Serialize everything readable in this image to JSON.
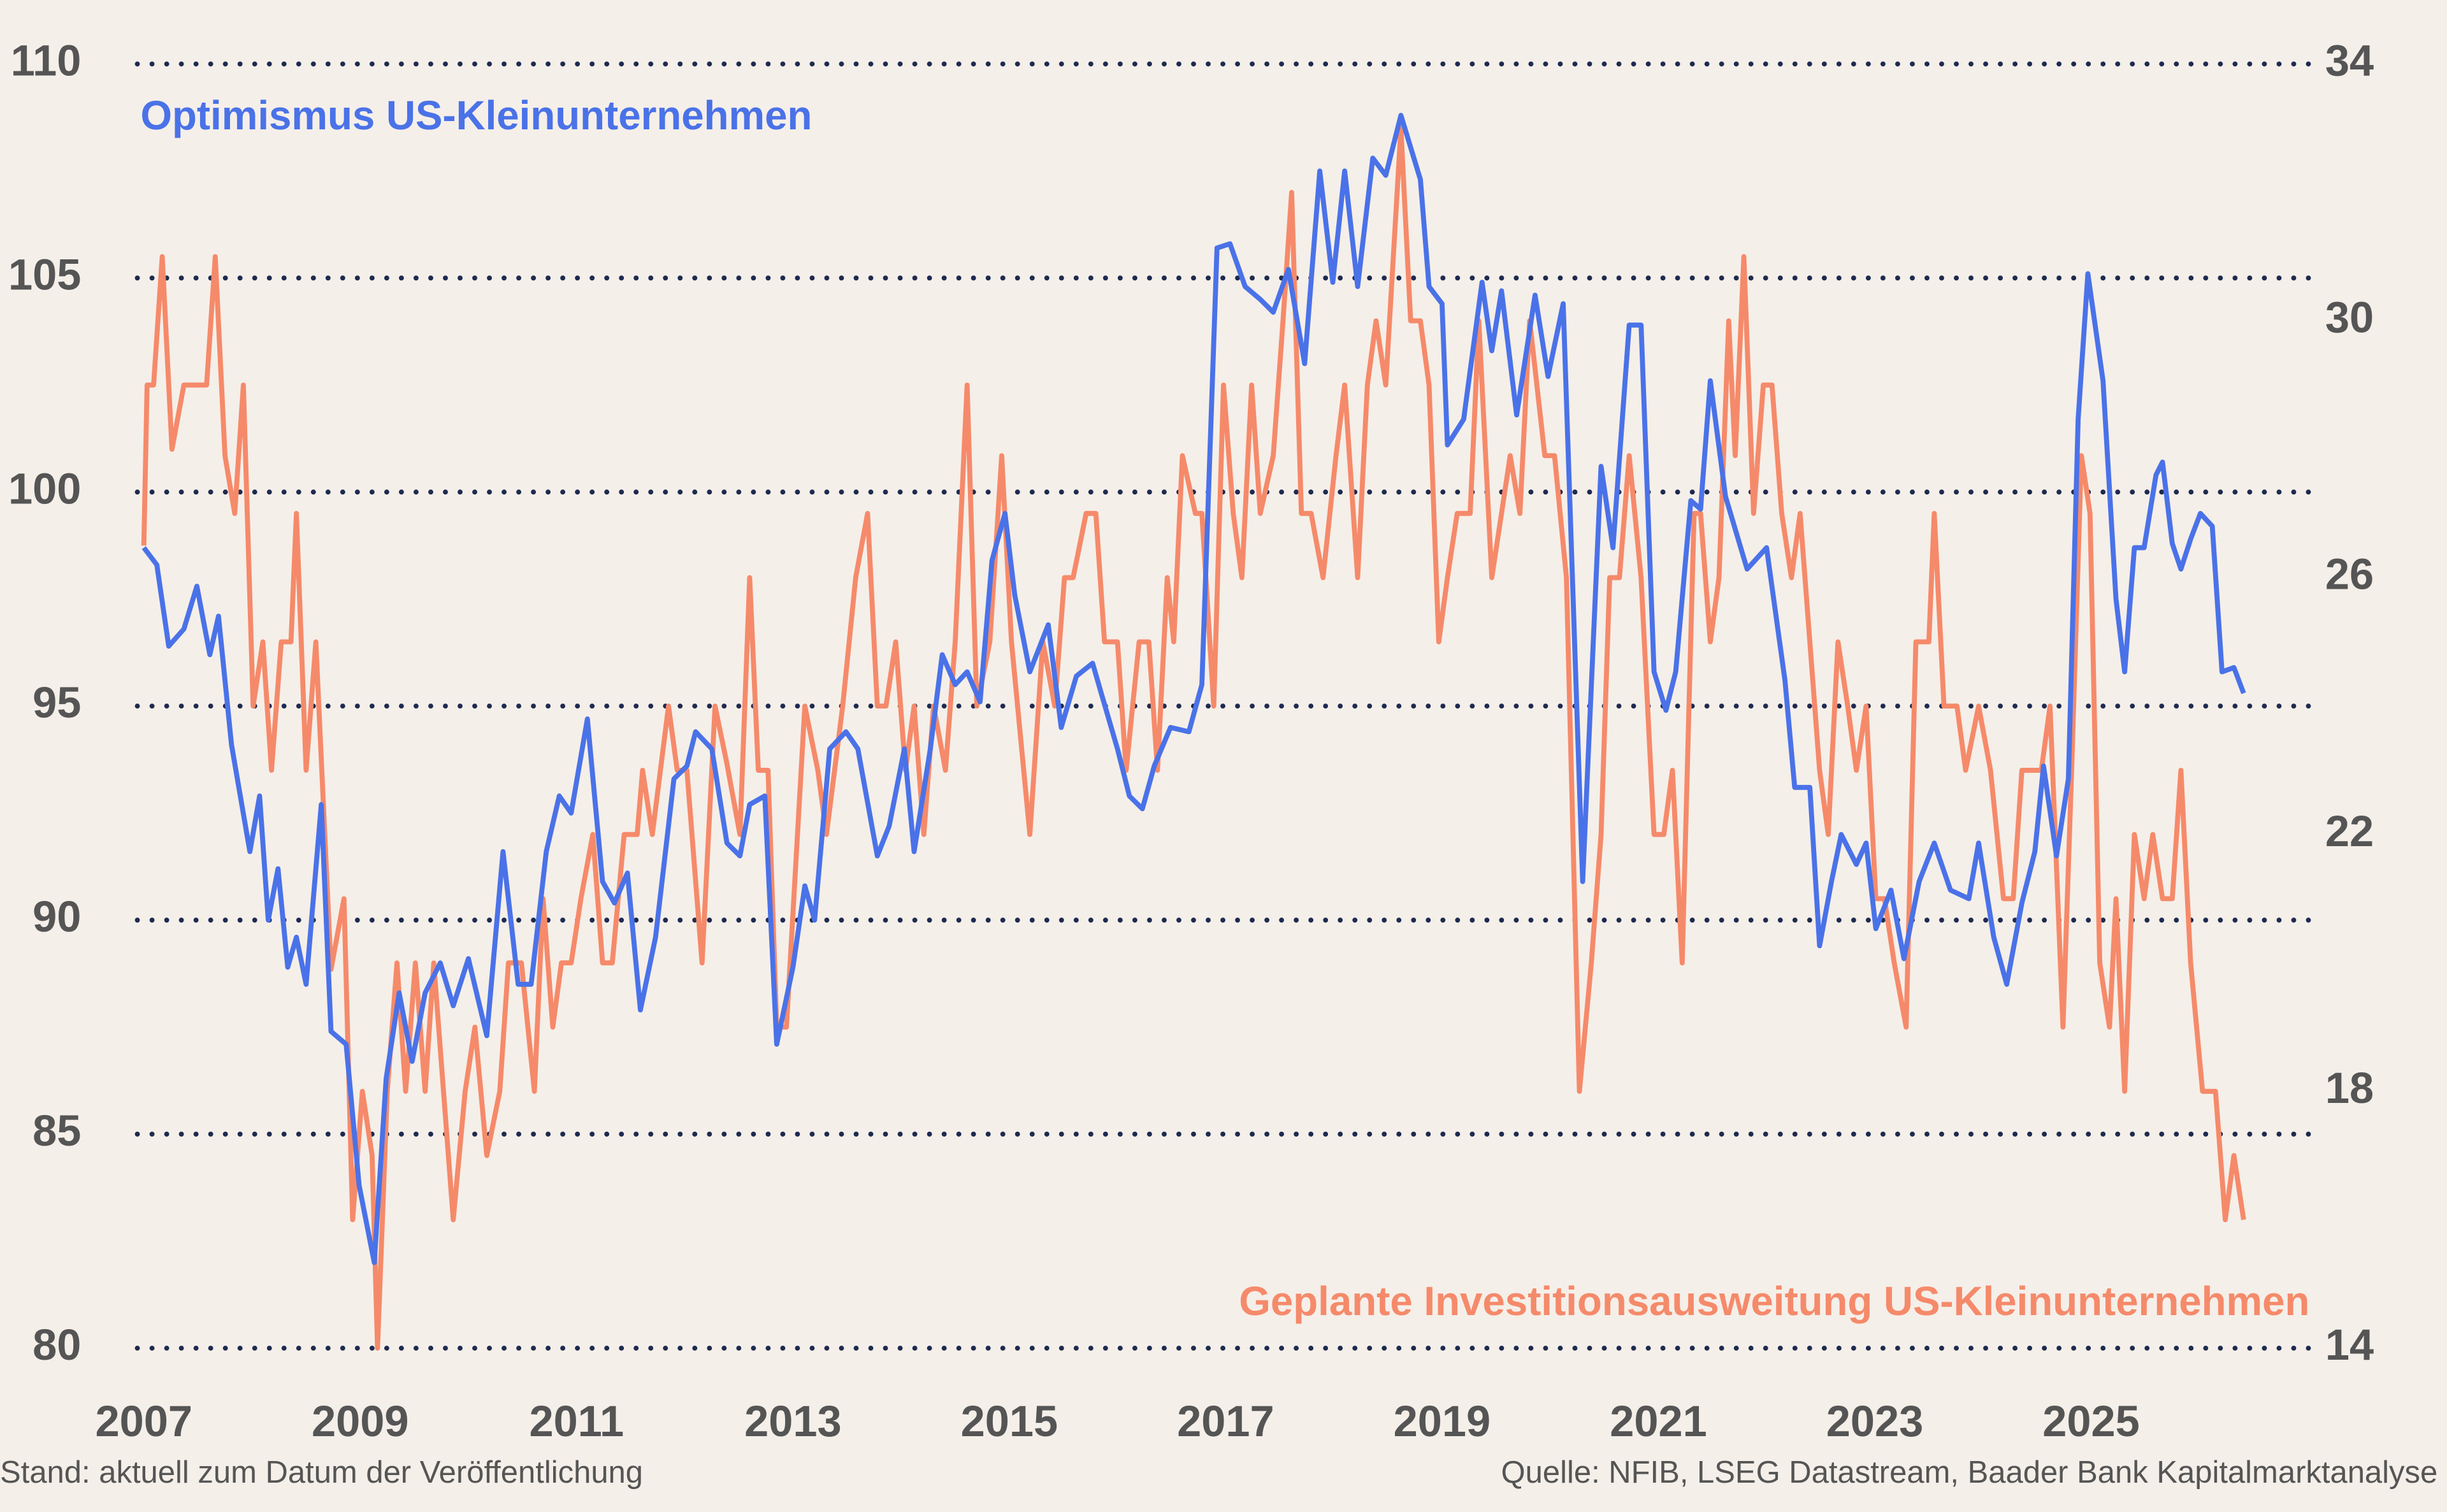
{
  "chart_data": {
    "type": "line",
    "note": "Stand: aktuell zum Datum der Veröffentlichung",
    "source": "Quelle: NFIB, LSEG Datastream, Baader Bank Kapitalmarktanalyse",
    "xlim": [
      2006.94,
      2027.02
    ],
    "xticks": [
      2007,
      2009,
      2011,
      2013,
      2015,
      2017,
      2019,
      2021,
      2023,
      2025
    ],
    "ylim": [
      80,
      110
    ],
    "yticks": [
      80,
      85,
      90,
      95,
      100,
      105,
      110
    ],
    "y2lim": [
      14,
      34
    ],
    "y2ticks": [
      14,
      18,
      22,
      26,
      30,
      34
    ],
    "grid": true,
    "series": [
      {
        "name": "Optimismus US-Kleinunternehmen",
        "color": "#4a72e8",
        "x": [
          2007.0,
          2007.12,
          2007.23,
          2007.37,
          2007.49,
          2007.61,
          2007.69,
          2007.81,
          2007.98,
          2008.07,
          2008.15,
          2008.24,
          2008.33,
          2008.41,
          2008.5,
          2008.64,
          2008.73,
          2008.87,
          2008.99,
          2009.13,
          2009.24,
          2009.36,
          2009.48,
          2009.6,
          2009.74,
          2009.86,
          2010.0,
          2010.17,
          2010.32,
          2010.46,
          2010.58,
          2010.72,
          2010.84,
          2010.95,
          2011.1,
          2011.24,
          2011.35,
          2011.47,
          2011.59,
          2011.73,
          2011.9,
          2012.02,
          2012.1,
          2012.25,
          2012.39,
          2012.51,
          2012.6,
          2012.74,
          2012.85,
          2013.0,
          2013.11,
          2013.2,
          2013.34,
          2013.49,
          2013.6,
          2013.78,
          2013.89,
          2014.03,
          2014.12,
          2014.27,
          2014.38,
          2014.5,
          2014.61,
          2014.73,
          2014.84,
          2014.96,
          2015.05,
          2015.19,
          2015.36,
          2015.48,
          2015.62,
          2015.77,
          2015.85,
          2016.0,
          2016.11,
          2016.23,
          2016.34,
          2016.49,
          2016.66,
          2016.78,
          2016.92,
          2017.04,
          2017.18,
          2017.32,
          2017.44,
          2017.58,
          2017.73,
          2017.87,
          2017.99,
          2018.1,
          2018.22,
          2018.36,
          2018.48,
          2018.62,
          2018.8,
          2018.88,
          2019.0,
          2019.05,
          2019.2,
          2019.37,
          2019.46,
          2019.55,
          2019.69,
          2019.86,
          2019.98,
          2020.12,
          2020.3,
          2020.47,
          2020.58,
          2020.73,
          2020.84,
          2020.96,
          2021.07,
          2021.16,
          2021.3,
          2021.39,
          2021.48,
          2021.62,
          2021.82,
          2022.0,
          2022.17,
          2022.26,
          2022.4,
          2022.49,
          2022.6,
          2022.69,
          2022.83,
          2022.92,
          2023.01,
          2023.15,
          2023.27,
          2023.41,
          2023.55,
          2023.7,
          2023.87,
          2023.96,
          2024.1,
          2024.22,
          2024.36,
          2024.48,
          2024.56,
          2024.68,
          2024.79,
          2024.88,
          2024.97,
          2025.11,
          2025.23,
          2025.31,
          2025.4,
          2025.49,
          2025.6,
          2025.66,
          2025.75,
          2025.83,
          2025.92,
          2026.01,
          2026.12,
          2026.21,
          2026.32,
          2026.41
        ],
        "values": [
          98.7,
          98.3,
          96.4,
          96.8,
          97.8,
          96.2,
          97.1,
          94.1,
          91.6,
          92.9,
          90.0,
          91.2,
          88.9,
          89.6,
          88.5,
          92.7,
          87.4,
          87.1,
          83.8,
          82.0,
          86.3,
          88.3,
          86.7,
          88.3,
          89.0,
          88.0,
          89.1,
          87.3,
          91.6,
          88.5,
          88.5,
          91.6,
          92.9,
          92.5,
          94.7,
          90.9,
          90.4,
          91.1,
          87.9,
          89.6,
          93.3,
          93.6,
          94.4,
          94.0,
          91.8,
          91.5,
          92.7,
          92.9,
          87.1,
          88.9,
          90.8,
          90.0,
          94.0,
          94.4,
          94.0,
          91.5,
          92.2,
          94.0,
          91.6,
          94.0,
          96.2,
          95.5,
          95.8,
          95.1,
          98.4,
          99.5,
          97.6,
          95.8,
          96.9,
          94.5,
          95.7,
          96.0,
          95.3,
          94.0,
          92.9,
          92.6,
          93.6,
          94.5,
          94.4,
          95.5,
          105.7,
          105.8,
          104.8,
          104.5,
          104.2,
          105.2,
          103.0,
          107.5,
          104.9,
          107.5,
          104.8,
          107.8,
          107.4,
          108.8,
          107.3,
          104.8,
          104.4,
          101.1,
          101.7,
          104.9,
          103.3,
          104.7,
          101.8,
          104.6,
          102.7,
          104.4,
          90.9,
          100.6,
          98.7,
          103.9,
          103.9,
          95.8,
          94.9,
          95.8,
          99.8,
          99.6,
          102.6,
          99.9,
          98.2,
          98.7,
          95.6,
          93.1,
          93.1,
          89.4,
          90.9,
          92.0,
          91.3,
          91.8,
          89.8,
          90.7,
          89.1,
          90.9,
          91.8,
          90.7,
          90.5,
          91.8,
          89.6,
          88.5,
          90.4,
          91.6,
          93.6,
          91.5,
          93.3,
          101.7,
          105.1,
          102.6,
          97.5,
          95.8,
          98.7,
          98.7,
          100.4,
          100.7,
          98.8,
          98.2,
          98.9,
          99.5,
          99.2,
          95.8,
          95.9,
          95.3
        ]
      },
      {
        "name": "Geplante Investitionsausweitung US-Kleinunternehmen",
        "color": "#f58a6a",
        "axis": "y2",
        "x": [
          2007.0,
          2007.03,
          2007.09,
          2007.17,
          2007.26,
          2007.37,
          2007.58,
          2007.66,
          2007.75,
          2007.84,
          2007.92,
          2008.01,
          2008.1,
          2008.18,
          2008.27,
          2008.36,
          2008.41,
          2008.5,
          2008.59,
          2008.73,
          2008.85,
          2008.93,
          2009.02,
          2009.11,
          2009.16,
          2009.25,
          2009.34,
          2009.42,
          2009.51,
          2009.6,
          2009.68,
          2009.86,
          2009.97,
          2010.06,
          2010.17,
          2010.29,
          2010.37,
          2010.49,
          2010.61,
          2010.69,
          2010.78,
          2010.86,
          2010.95,
          2011.04,
          2011.15,
          2011.24,
          2011.33,
          2011.44,
          2011.56,
          2011.61,
          2011.7,
          2011.85,
          2011.93,
          2012.02,
          2012.16,
          2012.28,
          2012.39,
          2012.51,
          2012.6,
          2012.68,
          2012.77,
          2012.85,
          2012.94,
          2013.11,
          2013.23,
          2013.31,
          2013.46,
          2013.58,
          2013.69,
          2013.78,
          2013.86,
          2013.95,
          2014.04,
          2014.12,
          2014.21,
          2014.3,
          2014.41,
          2014.5,
          2014.61,
          2014.7,
          2014.82,
          2014.93,
          2015.02,
          2015.19,
          2015.31,
          2015.42,
          2015.51,
          2015.59,
          2015.71,
          2015.8,
          2015.88,
          2016.0,
          2016.08,
          2016.2,
          2016.29,
          2016.37,
          2016.46,
          2016.52,
          2016.6,
          2016.72,
          2016.78,
          2016.89,
          2016.98,
          2017.07,
          2017.15,
          2017.24,
          2017.32,
          2017.44,
          2017.53,
          2017.61,
          2017.7,
          2017.79,
          2017.9,
          2018.02,
          2018.1,
          2018.22,
          2018.31,
          2018.39,
          2018.48,
          2018.62,
          2018.71,
          2018.8,
          2018.88,
          2018.97,
          2019.05,
          2019.14,
          2019.26,
          2019.34,
          2019.46,
          2019.55,
          2019.63,
          2019.72,
          2019.81,
          2019.95,
          2020.04,
          2020.15,
          2020.27,
          2020.38,
          2020.47,
          2020.55,
          2020.64,
          2020.73,
          2020.84,
          2020.96,
          2021.05,
          2021.13,
          2021.22,
          2021.33,
          2021.39,
          2021.48,
          2021.56,
          2021.65,
          2021.71,
          2021.79,
          2021.88,
          2021.97,
          2022.05,
          2022.14,
          2022.23,
          2022.31,
          2022.4,
          2022.49,
          2022.57,
          2022.66,
          2022.75,
          2022.83,
          2022.92,
          2023.01,
          2023.09,
          2023.18,
          2023.29,
          2023.38,
          2023.5,
          2023.55,
          2023.64,
          2023.76,
          2023.84,
          2023.96,
          2024.07,
          2024.19,
          2024.28,
          2024.36,
          2024.48,
          2024.54,
          2024.62,
          2024.74,
          2024.82,
          2024.91,
          2024.99,
          2025.08,
          2025.17,
          2025.23,
          2025.31,
          2025.4,
          2025.49,
          2025.57,
          2025.66,
          2025.75,
          2025.83,
          2025.92,
          2026.03,
          2026.15,
          2026.24,
          2026.32,
          2026.41
        ],
        "values": [
          26.5,
          29,
          29,
          31,
          28,
          29,
          29,
          31,
          27.9,
          27,
          29,
          24,
          25,
          23,
          25,
          25,
          27,
          23,
          25,
          19.9,
          21,
          16,
          18,
          17,
          14,
          18,
          20,
          18,
          20,
          18,
          20,
          16,
          18,
          19,
          17,
          18,
          20,
          20,
          18,
          21,
          19,
          20,
          20,
          21,
          22,
          20,
          20,
          22,
          22,
          23,
          22,
          24,
          23,
          23,
          20,
          24,
          23.1,
          22,
          26,
          23,
          23,
          19,
          19,
          24,
          23,
          22,
          24,
          26,
          27,
          24,
          24,
          25,
          23,
          24,
          22,
          24,
          23,
          25,
          29,
          24,
          25,
          27.9,
          25,
          22,
          25,
          24,
          26,
          26,
          27,
          27,
          25,
          25,
          23,
          25,
          25,
          23,
          26,
          25,
          27.9,
          27,
          27,
          24,
          29,
          27,
          26,
          29,
          27,
          27.9,
          30,
          32,
          27,
          27,
          26,
          27.9,
          29,
          26,
          29,
          30,
          29,
          33,
          30,
          30,
          29,
          25,
          26,
          27,
          27,
          30,
          26,
          27,
          27.9,
          27,
          30,
          27.9,
          27.9,
          26,
          18,
          20,
          22,
          26,
          26,
          27.9,
          26,
          22,
          22,
          23,
          20,
          27,
          27,
          25,
          26,
          30,
          27.9,
          31,
          27,
          29,
          29,
          27,
          26,
          27,
          25,
          23,
          22,
          25,
          24,
          23,
          24,
          21,
          21,
          20,
          19,
          25,
          25,
          27,
          24,
          24,
          23,
          24,
          23,
          21,
          21,
          23,
          23,
          23,
          24,
          19,
          23,
          27.9,
          27,
          20,
          19,
          21,
          18,
          22,
          21,
          22,
          21,
          21,
          23,
          20,
          18,
          18,
          16,
          17,
          16
        ]
      }
    ]
  }
}
